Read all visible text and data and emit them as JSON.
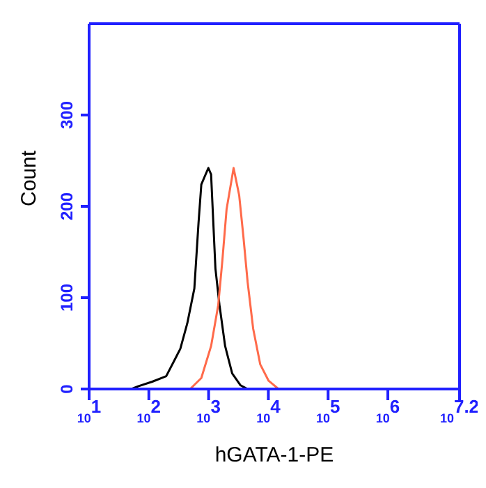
{
  "chart_data": {
    "type": "line",
    "xlabel": "hGATA-1-PE",
    "ylabel": "Count",
    "log": "x",
    "xlim": [
      10,
      15848932
    ],
    "xticks": [
      {
        "value": 10,
        "label": "10$^{1}$"
      },
      {
        "value": 100,
        "label": "10$^{2}$"
      },
      {
        "value": 1000,
        "label": "10$^{3}$"
      },
      {
        "value": 10000,
        "label": "10$^{4}$"
      },
      {
        "value": 100000,
        "label": "10$^{5}$"
      },
      {
        "value": 1000000,
        "label": "10$^{6}$"
      },
      {
        "value": 15848932,
        "label": "10$^{7.2}$"
      }
    ],
    "ylim": [
      0,
      400
    ],
    "yticks": [
      0,
      100,
      200,
      300
    ],
    "grid": false,
    "legend": false,
    "marker": "none",
    "line_style": "solid",
    "series": [
      {
        "color": "#000000",
        "x": [
          15,
          51,
          66,
          114,
          195,
          336,
          440,
          577,
          678,
          755,
          990,
          1100,
          1300,
          1520,
          1890,
          2480,
          3430,
          4500
        ],
        "values": [
          0,
          0,
          3,
          8,
          14,
          44,
          72,
          110,
          182,
          224,
          242,
          235,
          132,
          92,
          47,
          17,
          4,
          0
        ]
      },
      {
        "color": "#ff6a4a",
        "x": [
          490,
          755,
          1100,
          1450,
          1700,
          2000,
          2620,
          3250,
          3820,
          4500,
          5570,
          7310,
          10100,
          14800,
          19300
        ],
        "values": [
          0,
          12,
          47,
          92,
          141,
          197,
          242,
          212,
          167,
          117,
          66,
          27,
          9,
          0,
          0
        ]
      }
    ]
  }
}
